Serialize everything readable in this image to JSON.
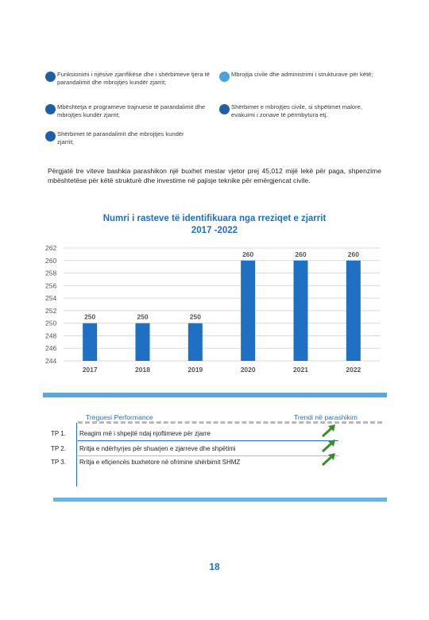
{
  "bullets": [
    {
      "text": "Funksionimi i njësive zjarrfikëse dhe i shërbimeve tjera të parandalimit dhe mbrojtjes kundër zjarrit;",
      "color": "dark"
    },
    {
      "text": "Mbrojtja civile dhe administrimi i strukturave për këtë;",
      "color": "light"
    },
    {
      "text": "Mbështetja e programeve trajnuese të parandalimit dhe mbrojtjes kundër zjarrit;",
      "color": "dark"
    },
    {
      "text": "Shërbimet e mbrojtjes civile, si shpëtimet malore, evakuimi i zonave të përmbytura etj.",
      "color": "dark"
    },
    {
      "text": "Shërbimet të parandalimit dhe mbrojtjes kundër zjarrit;",
      "color": "dark"
    }
  ],
  "paragraph": "Përgjatë tre viteve bashkia parashikon një buxhet mestar vjetor prej 45,012 mijë lekë për paga, shpenzime mbështetëse për këtë strukturë dhe investime në pajisje teknike për emërgjencat civile.",
  "chart_title_line1": "Numri i rasteve të identifikuara nga rreziqet e zjarrit",
  "chart_title_line2": "2017 -2022",
  "chart_data": {
    "type": "bar",
    "title": "Numri i rasteve të identifikuara nga rreziqet e zjarrit 2017 -2022",
    "categories": [
      "2017",
      "2018",
      "2019",
      "2020",
      "2021",
      "2022"
    ],
    "values": [
      250,
      250,
      250,
      260,
      260,
      260
    ],
    "ylim": [
      244,
      262
    ],
    "yticks": [
      262,
      260,
      258,
      256,
      254,
      252,
      250,
      248,
      246,
      244
    ],
    "grid": true,
    "bar_color": "#1f6fc3"
  },
  "table": {
    "header_left": "Treguesi Performance",
    "header_right": "Trendi në parashikim",
    "rows": [
      {
        "code": "TP 1.",
        "text": "Reagim më i shpejtë ndaj njoftimeve për zjarre",
        "trend_icon": "trend-up-arrow-icon",
        "underline": "#1f6fc3"
      },
      {
        "code": "TP 2.",
        "text": "Rritja e ndërhyrjes për shuarjen e zjarreve dhe shpëtimi",
        "trend_icon": "trend-up-arrow-icon",
        "underline": "#e0b84a"
      },
      {
        "code": "TP 3.",
        "text": "Rritja e efiçiencës buxhetore në ofrimine shërbimit SHMZ",
        "trend_icon": "trend-up-arrow-icon",
        "underline": "#ffffff"
      }
    ]
  },
  "page_number": "18"
}
